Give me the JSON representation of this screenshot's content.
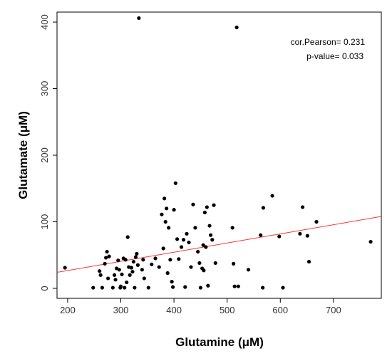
{
  "chart_data": {
    "type": "scatter",
    "xlabel": "Glutamine (μM)",
    "ylabel": "Glutamate (μM)",
    "xlim": [
      180,
      790
    ],
    "ylim": [
      -15,
      415
    ],
    "xticks": [
      200,
      300,
      400,
      500,
      600,
      700
    ],
    "yticks": [
      0,
      100,
      200,
      300,
      400
    ],
    "grid": false,
    "annotations": [
      "cor.Pearson= 0.231",
      "p-value= 0.033"
    ],
    "point_color": "#000000",
    "line_color": "#ff3333",
    "regression_line": {
      "x": [
        180,
        790
      ],
      "y": [
        24,
        108
      ]
    },
    "points": [
      [
        195,
        31
      ],
      [
        248,
        1
      ],
      [
        260,
        26
      ],
      [
        262,
        20
      ],
      [
        265,
        1
      ],
      [
        270,
        37
      ],
      [
        272,
        46
      ],
      [
        274,
        55
      ],
      [
        276,
        15
      ],
      [
        278,
        48
      ],
      [
        285,
        1
      ],
      [
        288,
        20
      ],
      [
        290,
        13
      ],
      [
        292,
        30
      ],
      [
        295,
        42
      ],
      [
        297,
        28
      ],
      [
        299,
        1
      ],
      [
        300,
        3
      ],
      [
        302,
        21
      ],
      [
        305,
        45
      ],
      [
        307,
        1
      ],
      [
        309,
        43
      ],
      [
        311,
        9
      ],
      [
        313,
        77
      ],
      [
        315,
        32
      ],
      [
        317,
        20
      ],
      [
        320,
        31
      ],
      [
        322,
        25
      ],
      [
        324,
        40
      ],
      [
        326,
        1
      ],
      [
        328,
        47
      ],
      [
        330,
        52
      ],
      [
        332,
        35
      ],
      [
        334,
        406
      ],
      [
        340,
        28
      ],
      [
        342,
        43
      ],
      [
        344,
        15
      ],
      [
        352,
        1
      ],
      [
        358,
        36
      ],
      [
        365,
        45
      ],
      [
        372,
        32
      ],
      [
        377,
        111
      ],
      [
        380,
        60
      ],
      [
        382,
        135
      ],
      [
        384,
        100
      ],
      [
        386,
        120
      ],
      [
        388,
        23
      ],
      [
        390,
        91
      ],
      [
        393,
        43
      ],
      [
        396,
        10
      ],
      [
        398,
        2
      ],
      [
        400,
        118
      ],
      [
        403,
        158
      ],
      [
        406,
        74
      ],
      [
        409,
        44
      ],
      [
        414,
        62
      ],
      [
        418,
        73
      ],
      [
        421,
        2
      ],
      [
        424,
        82
      ],
      [
        428,
        69
      ],
      [
        432,
        32
      ],
      [
        436,
        126
      ],
      [
        440,
        91
      ],
      [
        445,
        55
      ],
      [
        448,
        38
      ],
      [
        450,
        1
      ],
      [
        453,
        30
      ],
      [
        455,
        65
      ],
      [
        456,
        27
      ],
      [
        458,
        114
      ],
      [
        460,
        62
      ],
      [
        462,
        122
      ],
      [
        464,
        4
      ],
      [
        467,
        94
      ],
      [
        469,
        80
      ],
      [
        472,
        73
      ],
      [
        475,
        125
      ],
      [
        478,
        38
      ],
      [
        510,
        91
      ],
      [
        512,
        37
      ],
      [
        514,
        3
      ],
      [
        518,
        392
      ],
      [
        521,
        3
      ],
      [
        540,
        28
      ],
      [
        563,
        80
      ],
      [
        568,
        121
      ],
      [
        567,
        1
      ],
      [
        585,
        139
      ],
      [
        598,
        78
      ],
      [
        605,
        1
      ],
      [
        642,
        122
      ],
      [
        637,
        82
      ],
      [
        651,
        79
      ],
      [
        654,
        40
      ],
      [
        668,
        100
      ],
      [
        770,
        70
      ]
    ]
  }
}
